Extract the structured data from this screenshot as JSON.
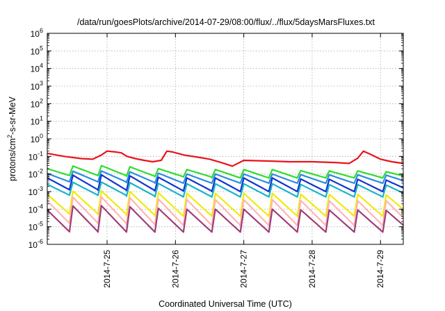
{
  "chart_data": {
    "type": "line",
    "title": "/data/run/goesPlots/archive/2014-07-29/08:00/flux/../flux/5daysMarsFluxes.txt",
    "xlabel": "Coordinated Universal Time (UTC)",
    "ylabel_parts": {
      "pre": "protons/cm",
      "sup": "2",
      "post": "-s-sr-MeV"
    },
    "y_scale": "log",
    "ylim": [
      1e-06,
      1000000.0
    ],
    "y_ticks": [
      {
        "base": "10",
        "exp": "-6",
        "value": 1e-06
      },
      {
        "base": "10",
        "exp": "-5",
        "value": 1e-05
      },
      {
        "base": "10",
        "exp": "-4",
        "value": 0.0001
      },
      {
        "base": "10",
        "exp": "-3",
        "value": 0.001
      },
      {
        "base": "10",
        "exp": "-2",
        "value": 0.01
      },
      {
        "base": "10",
        "exp": "-1",
        "value": 0.1
      },
      {
        "base": "10",
        "exp": "0",
        "value": 1
      },
      {
        "base": "10",
        "exp": "1",
        "value": 10.0
      },
      {
        "base": "10",
        "exp": "2",
        "value": 100.0
      },
      {
        "base": "10",
        "exp": "3",
        "value": 1000.0
      },
      {
        "base": "10",
        "exp": "4",
        "value": 10000.0
      },
      {
        "base": "10",
        "exp": "5",
        "value": 100000.0
      },
      {
        "base": "10",
        "exp": "6",
        "value": 1000000.0
      }
    ],
    "xlim": [
      "2014-07-24 03:00",
      "2014-07-29 08:00"
    ],
    "x_ticks": [
      {
        "label": "2014-7-25",
        "value": "2014-07-25 00:00"
      },
      {
        "label": "2014-7-26",
        "value": "2014-07-26 00:00"
      },
      {
        "label": "2014-7-27",
        "value": "2014-07-27 00:00"
      },
      {
        "label": "2014-7-28",
        "value": "2014-07-28 00:00"
      },
      {
        "label": "2014-7-29",
        "value": "2014-07-29 00:00"
      }
    ],
    "grid": true,
    "series": [
      {
        "color": "#e8131b",
        "sawtooth": false,
        "x": [
          "2014-07-24 03:00",
          "2014-07-24 09:00",
          "2014-07-24 15:00",
          "2014-07-24 19:00",
          "2014-07-24 22:00",
          "2014-07-25 00:00",
          "2014-07-25 03:00",
          "2014-07-25 05:00",
          "2014-07-25 07:00",
          "2014-07-25 10:00",
          "2014-07-25 13:00",
          "2014-07-25 16:00",
          "2014-07-25 19:00",
          "2014-07-25 21:00",
          "2014-07-25 23:00",
          "2014-07-26 03:00",
          "2014-07-26 08:00",
          "2014-07-26 12:00",
          "2014-07-26 16:00",
          "2014-07-26 20:00",
          "2014-07-27 00:00",
          "2014-07-27 08:00",
          "2014-07-27 16:00",
          "2014-07-28 00:00",
          "2014-07-28 08:00",
          "2014-07-28 13:00",
          "2014-07-28 16:00",
          "2014-07-28 18:00",
          "2014-07-28 21:00",
          "2014-07-29 00:00",
          "2014-07-29 04:00",
          "2014-07-29 08:00"
        ],
        "y": [
          0.15,
          0.1,
          0.075,
          0.07,
          0.12,
          0.2,
          0.18,
          0.16,
          0.1,
          0.075,
          0.06,
          0.05,
          0.06,
          0.2,
          0.18,
          0.12,
          0.09,
          0.07,
          0.045,
          0.028,
          0.06,
          0.055,
          0.05,
          0.05,
          0.045,
          0.04,
          0.08,
          0.2,
          0.12,
          0.07,
          0.05,
          0.04
        ]
      },
      {
        "color": "#2edd2c",
        "sawtooth": true,
        "peaks": [
          0.022,
          0.03,
          0.03,
          0.022,
          0.018,
          0.018,
          0.018,
          0.018,
          0.015,
          0.015,
          0.015,
          0.012
        ],
        "troughs": [
          0.009,
          0.008,
          0.008,
          0.007,
          0.007,
          0.006,
          0.006,
          0.006,
          0.006,
          0.006,
          0.006,
          0.006
        ]
      },
      {
        "color": "#2a8ce0",
        "sawtooth": true,
        "peaks": [
          0.012,
          0.015,
          0.015,
          0.012,
          0.01,
          0.01,
          0.01,
          0.01,
          0.009,
          0.009,
          0.009,
          0.008
        ],
        "troughs": [
          0.004,
          0.0035,
          0.0035,
          0.003,
          0.003,
          0.003,
          0.003,
          0.003,
          0.003,
          0.003,
          0.003,
          0.003
        ]
      },
      {
        "color": "#1432d2",
        "sawtooth": true,
        "peaks": [
          0.007,
          0.009,
          0.009,
          0.007,
          0.006,
          0.006,
          0.006,
          0.006,
          0.005,
          0.005,
          0.005,
          0.004
        ],
        "troughs": [
          0.0015,
          0.0012,
          0.0012,
          0.0011,
          0.0011,
          0.001,
          0.001,
          0.001,
          0.001,
          0.001,
          0.001,
          0.001
        ]
      },
      {
        "color": "#18b4c8",
        "sawtooth": true,
        "peaks": [
          0.003,
          0.0035,
          0.0035,
          0.003,
          0.0028,
          0.0028,
          0.0028,
          0.0028,
          0.0025,
          0.0025,
          0.0025,
          0.0022
        ],
        "troughs": [
          0.0007,
          0.0006,
          0.0006,
          0.0005,
          0.0005,
          0.0005,
          0.0005,
          0.0005,
          0.0005,
          0.0005,
          0.0005,
          0.0005
        ]
      },
      {
        "color": "#f0ea0a",
        "sawtooth": true,
        "peaks": [
          0.0009,
          0.0011,
          0.0011,
          0.0009,
          0.0008,
          0.0008,
          0.0008,
          0.0008,
          0.0007,
          0.0007,
          0.0007,
          0.0006
        ],
        "troughs": [
          7e-05,
          5e-05,
          5e-05,
          4e-05,
          4e-05,
          4e-05,
          4e-05,
          4e-05,
          4e-05,
          4e-05,
          4e-05,
          4e-05
        ]
      },
      {
        "color": "#ffb4b4",
        "sawtooth": true,
        "peaks": [
          0.0004,
          0.0005,
          0.0005,
          0.0004,
          0.00035,
          0.00035,
          0.00035,
          0.00035,
          0.0003,
          0.0003,
          0.0003,
          0.0003
        ],
        "troughs": [
          2e-05,
          1.5e-05,
          1.5e-05,
          1.2e-05,
          1.2e-05,
          1.2e-05,
          1.2e-05,
          1.2e-05,
          1.2e-05,
          1.2e-05,
          1.2e-05,
          1.2e-05
        ]
      },
      {
        "color": "#a03c78",
        "sawtooth": true,
        "peaks": [
          0.00012,
          0.00016,
          0.00016,
          0.00012,
          0.0001,
          0.0001,
          0.0001,
          0.0001,
          9e-05,
          9e-05,
          9e-05,
          8e-05
        ],
        "troughs": [
          6e-06,
          5e-06,
          5e-06,
          5e-06,
          5e-06,
          5e-06,
          5e-06,
          5e-06,
          5e-06,
          5e-06,
          5e-06,
          5e-06
        ]
      }
    ]
  }
}
